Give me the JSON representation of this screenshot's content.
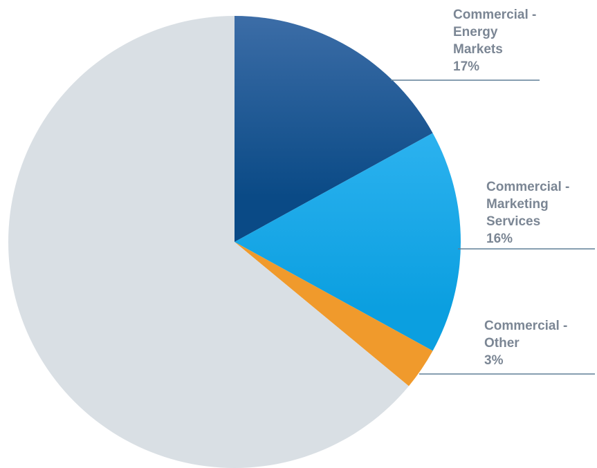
{
  "chart_data": {
    "type": "pie",
    "title": "",
    "start_angle_deg": 0,
    "direction": "clockwise",
    "slices": [
      {
        "label_lines": [
          "Commercial -",
          "Energy",
          "Markets"
        ],
        "value_label": "17%",
        "value": 17,
        "color": "#0a4a86",
        "color_light": "#3c6da7"
      },
      {
        "label_lines": [
          "Commercial -",
          "Marketing",
          "Services"
        ],
        "value_label": "16%",
        "value": 16,
        "color": "#0b9fe0",
        "color_light": "#2cb2ef"
      },
      {
        "label_lines": [
          "Commercial -",
          "Other"
        ],
        "value_label": "3%",
        "value": 3,
        "color": "#f09a2c",
        "color_light": "#f09a2c"
      },
      {
        "label_lines": [],
        "value_label": "",
        "value": 64,
        "color": "#d9dfe4",
        "color_light": "#d9dfe4"
      }
    ]
  }
}
